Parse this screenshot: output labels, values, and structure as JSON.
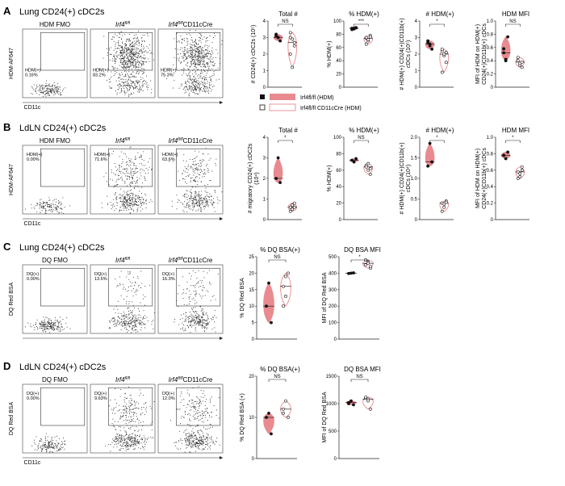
{
  "rows": [
    {
      "letter": "A",
      "title": "Lung CD24(+) cDC2s",
      "flow": {
        "ylabel": "HDM-AF647",
        "xlabel": "CD11c",
        "panels": [
          {
            "title": "HDM FMO",
            "gate_label": "HDM(+)",
            "gate_pct": "0.16%",
            "density": 0.15
          },
          {
            "title": "Irf4fl/fl",
            "gate_label": "HDM(+)",
            "gate_pct": "83.2%",
            "density": 1.0
          },
          {
            "title": "Irf4fl/flCD11cCre",
            "gate_label": "HDM(+)",
            "gate_pct": "75.3%",
            "density": 0.9
          }
        ]
      },
      "charts": [
        {
          "title": "Total #",
          "ylabel": "# CD24(+) cDC2s (10⁵)",
          "ylim": [
            0,
            4
          ],
          "ticks": [
            "0",
            "1",
            "2",
            "3",
            "4"
          ],
          "sig": "NS",
          "wt": [
            3.2,
            3.0,
            2.8,
            3.1,
            3.0
          ],
          "ko": [
            3.3,
            2.9,
            2.5,
            2.0,
            1.2,
            2.7,
            3.0
          ]
        },
        {
          "title": "% HDM(+)",
          "ylabel": "% HDM(+)",
          "ylim": [
            0,
            100
          ],
          "ticks": [
            "0",
            "20",
            "40",
            "60",
            "80",
            "100"
          ],
          "sig": "***",
          "wt": [
            89,
            88,
            90,
            87,
            89
          ],
          "ko": [
            74,
            70,
            78,
            65,
            72,
            76,
            75
          ]
        },
        {
          "title": "# HDM(+)",
          "ylabel": "# HDM(+) CD24(+)CD11b(+) cDCs (10⁵)",
          "ylim": [
            0,
            4
          ],
          "ticks": [
            "0",
            "1",
            "2",
            "3",
            "4"
          ],
          "sig": "*",
          "wt": [
            2.8,
            2.6,
            2.3,
            2.7,
            2.5
          ],
          "ko": [
            2.2,
            1.9,
            1.5,
            0.9,
            2.0,
            2.1,
            2.3
          ]
        },
        {
          "title": "HDM MFI",
          "ylabel": "MFI of HDM on HDM(+) CD24(+)CD11b(+) cDCs",
          "ylim": [
            0,
            1.0
          ],
          "ticks": [
            "0",
            "0.2",
            "0.4",
            "0.6",
            "0.8",
            "1.0"
          ],
          "sig": "NS",
          "wt": [
            0.58,
            0.4,
            0.76,
            0.52,
            0.42
          ],
          "ko": [
            0.4,
            0.33,
            0.38,
            0.45,
            0.36,
            0.3
          ]
        }
      ]
    },
    {
      "letter": "B",
      "title": "LdLN CD24(+) cDC2s",
      "flow": {
        "ylabel": "HDM-AF647",
        "xlabel": "CD11c",
        "panels": [
          {
            "title": "HDM FMO",
            "gate_label": "HDM(+)",
            "gate_pct": "0.00%",
            "density": 0.1
          },
          {
            "title": "Irf4fl/fl",
            "gate_label": "HDM(+)",
            "gate_pct": "71.6%",
            "density": 0.55
          },
          {
            "title": "Irf4fl/flCD11cCre",
            "gate_label": "HDM(+)",
            "gate_pct": "63.6%",
            "density": 0.45
          }
        ]
      },
      "charts": [
        {
          "title": "Total #",
          "ylabel": "# migratory CD24(+) cDC2s (10⁴)",
          "ylim": [
            0,
            4
          ],
          "ticks": [
            "0",
            "1",
            "2",
            "3",
            "4"
          ],
          "sig": "*",
          "wt": [
            2.0,
            3.0,
            1.8
          ],
          "ko": [
            0.6,
            0.5,
            0.8,
            0.4,
            0.7,
            0.6
          ]
        },
        {
          "title": "% HDM(+)",
          "ylabel": "% HDM(+)",
          "ylim": [
            0,
            100
          ],
          "ticks": [
            "0",
            "20",
            "40",
            "60",
            "80",
            "100"
          ],
          "sig": "NS",
          "wt": [
            72,
            70,
            74
          ],
          "ko": [
            66,
            60,
            55,
            64,
            68,
            62
          ]
        },
        {
          "title": "# HDM(+)",
          "ylabel": "# HDM(+) CD24(+)CD11b(+) cDCs (10⁴)",
          "ylim": [
            0,
            2.0
          ],
          "ticks": [
            "0",
            "0.5",
            "1.0",
            "1.5",
            "2.0"
          ],
          "sig": "*",
          "wt": [
            1.3,
            1.85,
            1.4
          ],
          "ko": [
            0.4,
            0.3,
            0.45,
            0.2,
            0.38,
            0.42
          ]
        },
        {
          "title": "HDM MFI",
          "ylabel": "MFI of HDM on HDM(+) CD24(+)CD11b(+) cDCs",
          "ylim": [
            0,
            1.0
          ],
          "ticks": [
            "0",
            "0.2",
            "0.4",
            "0.6",
            "0.8",
            "1.0"
          ],
          "sig": "*",
          "wt": [
            0.78,
            0.74,
            0.82
          ],
          "ko": [
            0.58,
            0.52,
            0.64,
            0.5,
            0.56,
            0.6
          ]
        }
      ]
    },
    {
      "letter": "C",
      "title": "Lung CD24(+) cDC2s",
      "flow": {
        "ylabel": "DQ Red BSA",
        "xlabel": "",
        "panels": [
          {
            "title": "DQ FMO",
            "gate_label": "DQ(+)",
            "gate_pct": "0.00%",
            "density": 0.2
          },
          {
            "title": "Irf4fl/fl",
            "gate_label": "DQ(+)",
            "gate_pct": "13.6%",
            "density": 0.35
          },
          {
            "title": "Irf4fl/flCD11cCre",
            "gate_label": "DQ(+)",
            "gate_pct": "16.3%",
            "density": 0.35
          }
        ]
      },
      "charts": [
        {
          "title": "% DQ BSA(+)",
          "ylabel": "% DQ Red BSA",
          "ylim": [
            0,
            25
          ],
          "ticks": [
            "0",
            "5",
            "10",
            "15",
            "20",
            "25"
          ],
          "sig": "NS",
          "wt": [
            10,
            17,
            5
          ],
          "ko": [
            16,
            13,
            20,
            10,
            19
          ]
        },
        {
          "title": "DQ BSA MFI",
          "ylabel": "MFI of DQ Red BSA",
          "ylim": [
            0,
            500
          ],
          "ticks": [
            "0",
            "100",
            "200",
            "300",
            "400",
            "500"
          ],
          "sig": "*",
          "wt": [
            398,
            400,
            402
          ],
          "ko": [
            450,
            470,
            430,
            480,
            460,
            440
          ]
        }
      ]
    },
    {
      "letter": "D",
      "title": "LdLN CD24(+) cDC2s",
      "flow": {
        "ylabel": "DQ Red BSA",
        "xlabel": "CD11c",
        "panels": [
          {
            "title": "DQ FMO",
            "gate_label": "DQ(+)",
            "gate_pct": "0.00%",
            "density": 0.15
          },
          {
            "title": "Irf4fl/fl",
            "gate_label": "DQ(+)",
            "gate_pct": "9.63%",
            "density": 0.5
          },
          {
            "title": "Irf4fl/flCD11cCre",
            "gate_label": "DQ(+)",
            "gate_pct": "12.0%",
            "density": 0.5
          }
        ]
      },
      "charts": [
        {
          "title": "% DQ BSA(+)",
          "ylabel": "% DQ Red BSA (+)",
          "ylim": [
            0,
            20
          ],
          "ticks": [
            "0",
            "10",
            "20"
          ],
          "sig": "NS",
          "wt": [
            10,
            11,
            6
          ],
          "ko": [
            12,
            14,
            10,
            11
          ]
        },
        {
          "title": "DQ BSA MFI",
          "ylabel": "MFI of DQ Red BSA",
          "ylim": [
            0,
            1500
          ],
          "ticks": [
            "0",
            "500",
            "1000",
            "1500"
          ],
          "sig": "NS",
          "wt": [
            1000,
            1050,
            980,
            1020
          ],
          "ko": [
            1100,
            1080,
            900,
            1120,
            1050
          ]
        }
      ]
    }
  ],
  "legend": {
    "wt_label": "Irf4fl/fl (HDM)",
    "ko_label": "Irf4fl/fl CD11cCre (HDM)"
  },
  "colors": {
    "wt_fill": "#e88a8f",
    "ko_stroke": "#e88a8f",
    "ink": "#111111"
  }
}
